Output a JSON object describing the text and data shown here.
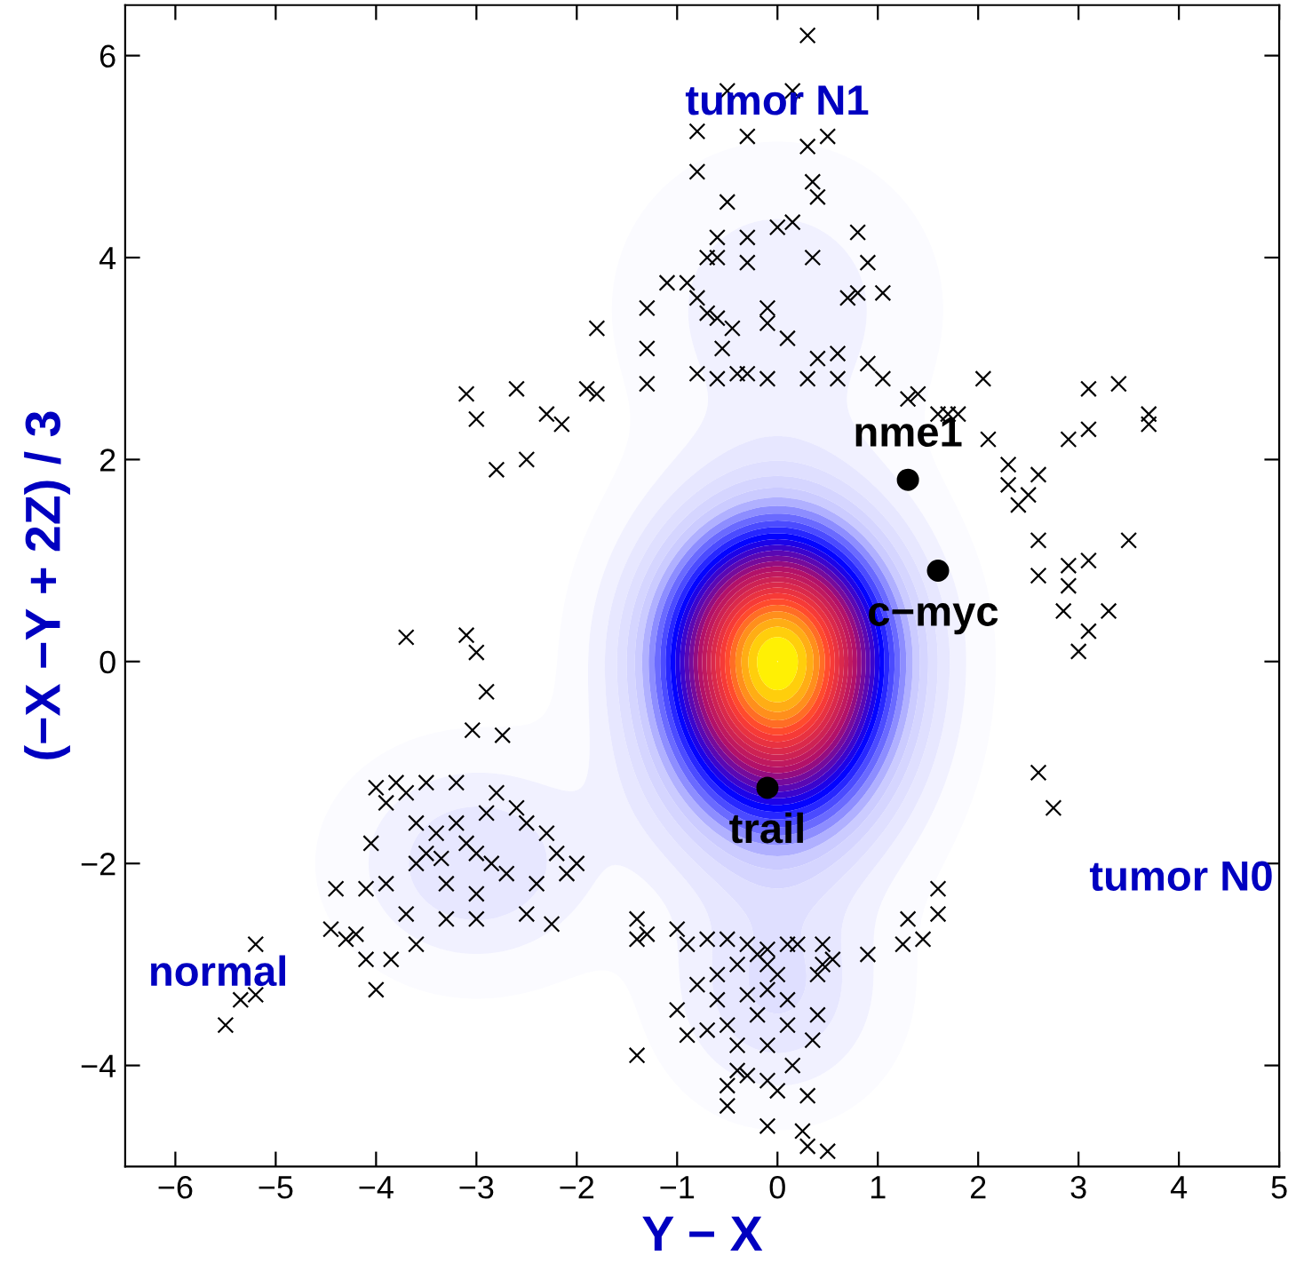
{
  "chart_data": {
    "type": "scatter",
    "xlabel": "Y − X",
    "ylabel": "(−X −Y + 2Z) / 3",
    "xlim": [
      -6.5,
      5
    ],
    "ylim": [
      -5,
      6.5
    ],
    "xticks": [
      {
        "value": -6,
        "label": "−6"
      },
      {
        "value": -5,
        "label": "−5"
      },
      {
        "value": -4,
        "label": "−4"
      },
      {
        "value": -3,
        "label": "−3"
      },
      {
        "value": -2,
        "label": "−2"
      },
      {
        "value": -1,
        "label": "−1"
      },
      0,
      1,
      2,
      3,
      4,
      5
    ],
    "yticks": [
      {
        "value": -4,
        "label": "−4"
      },
      {
        "value": -2,
        "label": "−2"
      },
      0,
      2,
      4,
      6
    ],
    "grid": false,
    "legend": false,
    "series": [
      {
        "marker": "cross",
        "color": "#000000",
        "x": [
          0.3,
          -0.5,
          0.15,
          0.3,
          0.5,
          -0.3,
          -0.8,
          -0.8,
          -0.5,
          0.35,
          0.4,
          0.15,
          -0.6,
          -0.3,
          0.0,
          -0.6,
          -0.7,
          -0.3,
          0.35,
          0.8,
          0.9,
          1.05,
          0.8,
          0.7,
          -1.1,
          -0.9,
          -0.8,
          -0.7,
          -0.6,
          -0.45,
          -0.55,
          -0.1,
          -0.1,
          0.1,
          0.4,
          0.6,
          0.9,
          1.05,
          -1.3,
          -1.8,
          -1.3,
          -1.3,
          -0.8,
          -0.6,
          -0.4,
          -0.3,
          -0.1,
          0.3,
          0.6,
          1.3,
          1.4,
          1.6,
          1.7,
          1.8,
          2.05,
          2.1,
          2.3,
          2.3,
          2.4,
          2.5,
          2.6,
          2.6,
          2.6,
          2.9,
          2.9,
          3.1,
          3.5,
          2.9,
          3.1,
          3.1,
          3.4,
          3.7,
          3.7,
          -2.6,
          -2.3,
          -2.15,
          -1.9,
          -1.8,
          -2.5,
          -2.8,
          -3.1,
          -3.0,
          2.6,
          2.75,
          2.85,
          3.0,
          3.1,
          3.3,
          -3.7,
          -3.1,
          -3.0,
          -2.9,
          -3.04,
          -2.74,
          -4.0,
          -3.8,
          -3.7,
          -3.9,
          -3.6,
          -3.4,
          -3.2,
          -3.1,
          -3.0,
          -2.9,
          -2.8,
          -2.6,
          -2.5,
          -2.3,
          -2.2,
          -2.0,
          -2.1,
          -2.4,
          -2.7,
          -3.0,
          -3.3,
          -3.6,
          -3.9,
          -4.1,
          -4.4,
          -3.7,
          -3.3,
          -3.0,
          -2.5,
          -2.25,
          -4.2,
          -3.6,
          -3.85,
          -4.1,
          -4.0,
          -4.3,
          -3.5,
          -3.2,
          -3.35,
          -2.85,
          -3.5,
          -4.05,
          -5.2,
          -5.2,
          -5.35,
          -5.5,
          -4.45,
          -1.4,
          -1.0,
          -0.9,
          -0.7,
          -0.5,
          -0.3,
          -0.1,
          0.1,
          0.2,
          0.45,
          0.45,
          0.55,
          0.4,
          -0.1,
          -0.4,
          -0.6,
          -0.8,
          -0.6,
          -0.3,
          -0.1,
          0.1,
          -0.2,
          -0.5,
          -0.7,
          -0.9,
          -1.0,
          -1.4,
          -1.3,
          -1.4,
          -0.4,
          -0.1,
          0.1,
          0.4,
          0.35,
          0.15,
          -0.4,
          -0.5,
          -0.1,
          0.0,
          -0.5,
          -0.3,
          0.3,
          -0.1,
          0.3,
          0.25,
          0.5,
          0.9,
          1.25,
          1.3,
          1.45,
          1.6,
          1.6,
          -0.2,
          0.0
        ],
        "values": [
          6.2,
          5.65,
          5.65,
          5.1,
          5.2,
          5.2,
          5.25,
          4.85,
          4.55,
          4.75,
          4.6,
          4.35,
          4.2,
          4.2,
          4.3,
          4.0,
          4.0,
          3.95,
          4.0,
          4.25,
          3.95,
          3.65,
          3.65,
          3.6,
          3.75,
          3.75,
          3.6,
          3.45,
          3.4,
          3.3,
          3.1,
          3.5,
          3.35,
          3.2,
          3.0,
          3.05,
          2.95,
          2.8,
          3.5,
          3.3,
          3.1,
          2.75,
          2.85,
          2.8,
          2.85,
          2.85,
          2.8,
          2.8,
          2.8,
          2.6,
          2.65,
          2.45,
          2.45,
          2.45,
          2.8,
          2.2,
          1.95,
          1.75,
          1.55,
          1.65,
          1.85,
          1.2,
          0.85,
          0.95,
          0.75,
          1.0,
          1.2,
          2.2,
          2.3,
          2.7,
          2.75,
          2.35,
          2.45,
          2.7,
          2.45,
          2.35,
          2.7,
          2.65,
          2.0,
          1.9,
          2.65,
          2.4,
          -1.1,
          -1.45,
          0.5,
          0.1,
          0.3,
          0.5,
          0.24,
          0.26,
          0.09,
          -0.3,
          -0.68,
          -0.73,
          -1.25,
          -1.2,
          -1.3,
          -1.4,
          -1.6,
          -1.7,
          -1.6,
          -1.8,
          -1.9,
          -1.5,
          -1.3,
          -1.45,
          -1.6,
          -1.7,
          -1.9,
          -2.0,
          -2.1,
          -2.2,
          -2.1,
          -2.3,
          -2.2,
          -2.0,
          -2.2,
          -2.25,
          -2.25,
          -2.5,
          -2.55,
          -2.55,
          -2.5,
          -2.6,
          -2.7,
          -2.8,
          -2.95,
          -2.95,
          -3.25,
          -2.75,
          -1.2,
          -1.2,
          -1.95,
          -2.0,
          -1.9,
          -1.8,
          -2.8,
          -3.3,
          -3.35,
          -3.6,
          -2.65,
          -2.55,
          -2.65,
          -2.8,
          -2.75,
          -2.75,
          -2.8,
          -2.85,
          -2.8,
          -2.8,
          -2.8,
          -3.0,
          -2.95,
          -3.1,
          -3.0,
          -3.0,
          -3.1,
          -3.2,
          -3.35,
          -3.3,
          -3.25,
          -3.35,
          -3.5,
          -3.6,
          -3.65,
          -3.7,
          -3.45,
          -2.75,
          -2.7,
          -3.9,
          -3.8,
          -3.8,
          -3.6,
          -3.5,
          -3.75,
          -4.0,
          -4.05,
          -4.2,
          -4.15,
          -4.25,
          -4.4,
          -4.1,
          -4.3,
          -4.6,
          -4.8,
          -4.65,
          -4.85,
          -2.9,
          -2.8,
          -2.55,
          -2.75,
          -2.5,
          -2.25,
          -2.9,
          -3.1
        ]
      },
      {
        "marker": "circle",
        "color": "#000000",
        "x": [
          1.3,
          1.6,
          -0.1
        ],
        "values": [
          1.8,
          0.9,
          -1.25
        ],
        "value_labels": [
          "nme1",
          "c−myc",
          "trail"
        ]
      }
    ],
    "annotations": [
      "tumor N1",
      "tumor N0",
      "normal"
    ]
  }
}
